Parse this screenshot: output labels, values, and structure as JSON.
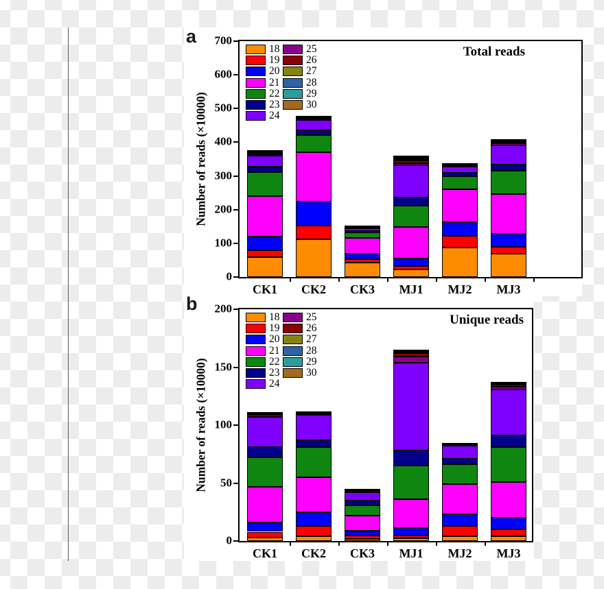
{
  "page": {
    "panel_a_label": "a",
    "panel_b_label": "b"
  },
  "chart_data": [
    {
      "type": "bar",
      "stacked": true,
      "title": "Total reads",
      "ylabel": "Number of reads (×10000)",
      "xlabel": "",
      "ylim": [
        0,
        700
      ],
      "yticks": [
        0,
        100,
        200,
        300,
        400,
        500,
        600,
        700
      ],
      "grid": false,
      "legend_position": "top-left-two-columns",
      "categories": [
        "CK1",
        "CK2",
        "CK3",
        "MJ1",
        "MJ2",
        "MJ3"
      ],
      "series": [
        {
          "name": "18",
          "color": "#FF8C00",
          "values": [
            60,
            112,
            43,
            22,
            88,
            69
          ]
        },
        {
          "name": "19",
          "color": "#FF0000",
          "values": [
            20,
            41,
            9,
            11,
            35,
            20
          ]
        },
        {
          "name": "20",
          "color": "#0000FF",
          "values": [
            40,
            71,
            17,
            22,
            39,
            40
          ]
        },
        {
          "name": "21",
          "color": "#FF00FF",
          "values": [
            120,
            146,
            48,
            93,
            99,
            117
          ]
        },
        {
          "name": "22",
          "color": "#0F860F",
          "values": [
            71,
            51,
            15,
            63,
            39,
            70
          ]
        },
        {
          "name": "23",
          "color": "#00008B",
          "values": [
            17,
            15,
            5,
            26,
            9,
            18
          ]
        },
        {
          "name": "24",
          "color": "#7F00FF",
          "values": [
            32,
            30,
            8,
            95,
            18,
            57
          ]
        },
        {
          "name": "25",
          "color": "#8B008B",
          "values": [
            5,
            3,
            1.5,
            6,
            3,
            5
          ]
        },
        {
          "name": "26",
          "color": "#8B0000",
          "values": [
            3,
            2,
            0.5,
            8,
            2,
            4
          ]
        },
        {
          "name": "27",
          "color": "#84840F",
          "values": [
            2,
            1,
            0.5,
            5,
            1,
            2
          ]
        },
        {
          "name": "28",
          "color": "#2F63A8",
          "values": [
            1,
            1,
            0.5,
            3,
            0.5,
            1
          ]
        },
        {
          "name": "29",
          "color": "#2D9C9C",
          "values": [
            1,
            0.5,
            0.3,
            3,
            0.5,
            1
          ]
        },
        {
          "name": "30",
          "color": "#A2691F",
          "values": [
            1,
            0.5,
            0.2,
            3,
            0.5,
            1
          ]
        }
      ]
    },
    {
      "type": "bar",
      "stacked": true,
      "title": "Unique reads",
      "ylabel": "Number of reads (×10000)",
      "xlabel": "",
      "ylim": [
        0,
        200
      ],
      "yticks": [
        0,
        50,
        100,
        150,
        200
      ],
      "grid": false,
      "legend_position": "top-left-two-columns",
      "categories": [
        "CK1",
        "CK2",
        "CK3",
        "MJ1",
        "MJ2",
        "MJ3"
      ],
      "series": [
        {
          "name": "18",
          "color": "#FF8C00",
          "values": [
            3,
            4,
            2,
            2.5,
            4,
            4
          ]
        },
        {
          "name": "19",
          "color": "#FF0000",
          "values": [
            5,
            9,
            3,
            2.5,
            9,
            6
          ]
        },
        {
          "name": "20",
          "color": "#0000FF",
          "values": [
            8,
            12,
            4,
            6,
            10,
            10
          ]
        },
        {
          "name": "21",
          "color": "#FF00FF",
          "values": [
            31,
            30,
            13,
            25,
            26,
            31
          ]
        },
        {
          "name": "22",
          "color": "#0F860F",
          "values": [
            25,
            26,
            9,
            29,
            17,
            30
          ]
        },
        {
          "name": "23",
          "color": "#00008B",
          "values": [
            9,
            6,
            4,
            13,
            5,
            10
          ]
        },
        {
          "name": "24",
          "color": "#7F00FF",
          "values": [
            26,
            22,
            7,
            76,
            11,
            40
          ]
        },
        {
          "name": "25",
          "color": "#8B008B",
          "values": [
            2,
            0.5,
            1,
            5,
            0.5,
            2
          ]
        },
        {
          "name": "26",
          "color": "#8B0000",
          "values": [
            0.5,
            0.3,
            0.3,
            3,
            0.3,
            2
          ]
        },
        {
          "name": "27",
          "color": "#84840F",
          "values": [
            0.3,
            0.2,
            0.2,
            1,
            0.2,
            0.5
          ]
        },
        {
          "name": "28",
          "color": "#2F63A8",
          "values": [
            0.2,
            0.2,
            0.2,
            0.5,
            0.2,
            0.3
          ]
        },
        {
          "name": "29",
          "color": "#2D9C9C",
          "values": [
            0.2,
            0.2,
            0.2,
            0.5,
            0.2,
            0.2
          ]
        },
        {
          "name": "30",
          "color": "#A2691F",
          "values": [
            0.2,
            0.2,
            0.1,
            0.5,
            0.2,
            0.2
          ]
        }
      ]
    }
  ]
}
